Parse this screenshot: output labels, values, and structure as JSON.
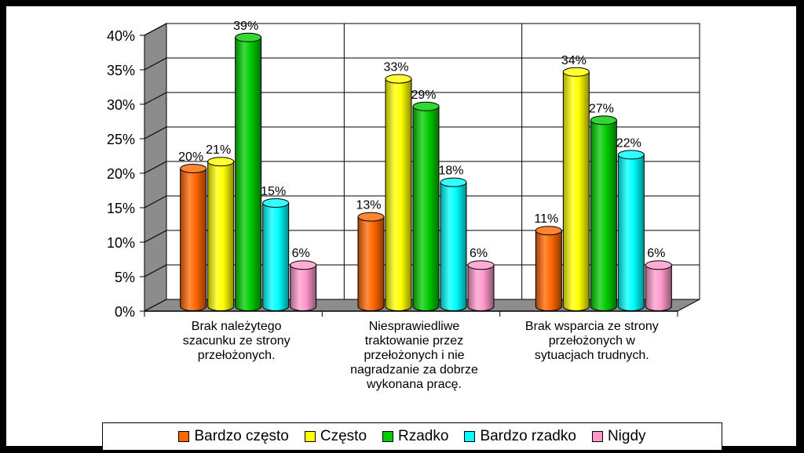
{
  "chart_data": {
    "type": "bar",
    "style": "3d-cylinder",
    "categories": [
      "Brak należytego szacunku ze strony przełożonych.",
      "Niesprawiedliwe traktowanie przez przełożonych i nie nagradzanie za dobrze wykonana pracę.",
      "Brak wsparcia ze strony przełożonych w sytuacjach trudnych."
    ],
    "category_lines": [
      [
        "Brak należytego",
        "szacunku ze strony",
        "przełożonych."
      ],
      [
        "Niesprawiedliwe",
        "traktowanie przez",
        "przełożonych i nie",
        "nagradzanie za dobrze",
        "wykonana pracę."
      ],
      [
        "Brak wsparcia ze strony",
        "przełożonych w",
        "sytuacjach trudnych."
      ]
    ],
    "series": [
      {
        "name": "Bardzo często",
        "values": [
          20,
          13,
          11
        ],
        "color": "#FF6600"
      },
      {
        "name": "Często",
        "values": [
          21,
          33,
          34
        ],
        "color": "#FFFF00"
      },
      {
        "name": "Rzadko",
        "values": [
          39,
          29,
          27
        ],
        "color": "#00CC00"
      },
      {
        "name": "Bardzo rzadko",
        "values": [
          15,
          18,
          22
        ],
        "color": "#00FFFF"
      },
      {
        "name": "Nigdy",
        "values": [
          6,
          6,
          6
        ],
        "color": "#FF99CC"
      }
    ],
    "data_labels": [
      [
        "20%",
        "13%",
        "11%"
      ],
      [
        "21%",
        "33%",
        "34%"
      ],
      [
        "39%",
        "29%",
        "27%"
      ],
      [
        "15%",
        "18%",
        "22%"
      ],
      [
        "6%",
        "6%",
        "6%"
      ]
    ],
    "yticks": [
      "0%",
      "5%",
      "10%",
      "15%",
      "20%",
      "25%",
      "30%",
      "35%",
      "40%"
    ],
    "ylim": [
      0,
      40
    ],
    "grid": true,
    "legend_position": "bottom",
    "title": "",
    "xlabel": "",
    "ylabel": ""
  }
}
